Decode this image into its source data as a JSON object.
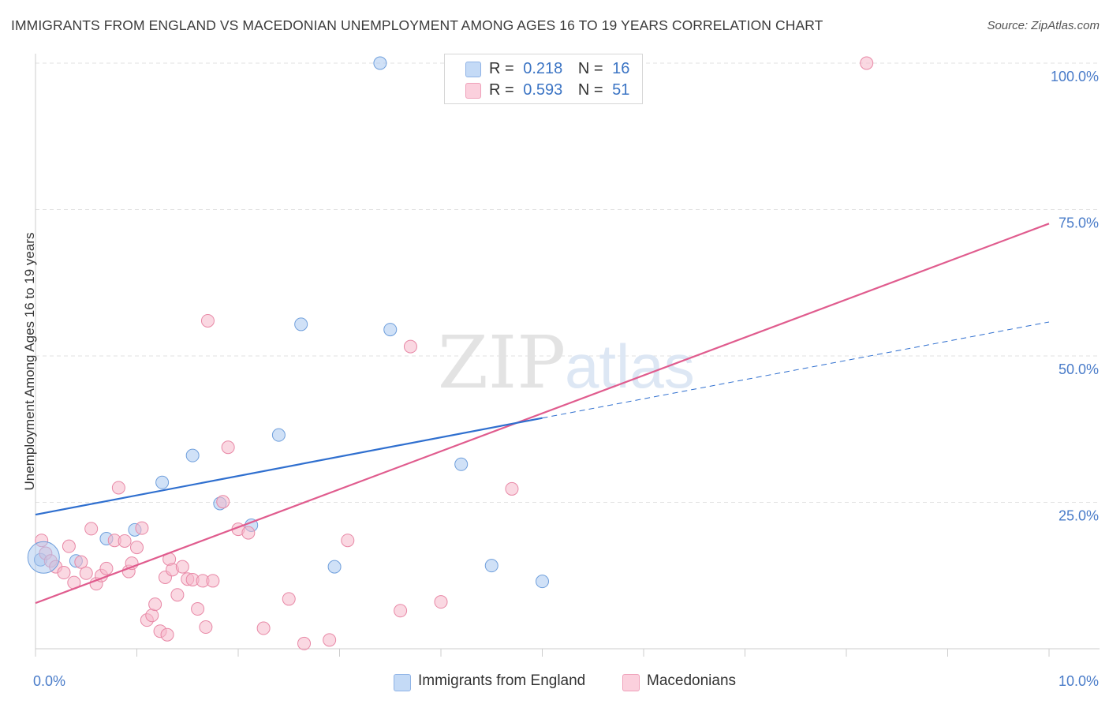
{
  "title": "IMMIGRANTS FROM ENGLAND VS MACEDONIAN UNEMPLOYMENT AMONG AGES 16 TO 19 YEARS CORRELATION CHART",
  "source": "Source: ZipAtlas.com",
  "watermark": {
    "zip": "ZIP",
    "atlas": "atlas"
  },
  "legend_top": [
    {
      "r_label": "R =",
      "r_value": "0.218",
      "n_label": "N =",
      "n_value": "16",
      "color": "#a9c8f0"
    },
    {
      "r_label": "R =",
      "r_value": "0.593",
      "n_label": "N =",
      "n_value": "51",
      "color": "#f6b8cb"
    }
  ],
  "chart_data": {
    "type": "scatter",
    "title": "IMMIGRANTS FROM ENGLAND VS MACEDONIAN UNEMPLOYMENT AMONG AGES 16 TO 19 YEARS CORRELATION CHART",
    "xlabel": "",
    "ylabel": "Unemployment Among Ages 16 to 19 years",
    "xlim": [
      0,
      10
    ],
    "ylim": [
      0,
      100
    ],
    "x_tick_labels": [
      "0.0%",
      "10.0%"
    ],
    "y_tick_labels": [
      "25.0%",
      "50.0%",
      "75.0%",
      "100.0%"
    ],
    "y_tick_values": [
      25,
      50,
      75,
      100
    ],
    "grid": true,
    "legend_position": "top-center",
    "series": [
      {
        "name": "Immigrants from England",
        "color": "#a9c8f0",
        "stroke": "#6f9fdc",
        "line_color": "#2f6fcf",
        "trend": {
          "x0": 0,
          "y0": 22.9,
          "x1": 5.0,
          "y1": 39.4,
          "dash_to_x": 10,
          "dash_to_y": 55.8
        },
        "points": [
          [
            0.05,
            15.2
          ],
          [
            0.4,
            15.0
          ],
          [
            0.7,
            18.8
          ],
          [
            0.98,
            20.3
          ],
          [
            1.25,
            28.4
          ],
          [
            1.55,
            33.0
          ],
          [
            1.82,
            24.8
          ],
          [
            2.13,
            21.1
          ],
          [
            2.4,
            36.5
          ],
          [
            2.62,
            55.4
          ],
          [
            2.95,
            14.0
          ],
          [
            3.4,
            100.0
          ],
          [
            3.5,
            54.5
          ],
          [
            4.2,
            31.5
          ],
          [
            4.5,
            14.2
          ],
          [
            5.0,
            11.5
          ]
        ]
      },
      {
        "name": "Macedonians",
        "color": "#f6b8cb",
        "stroke": "#e888a6",
        "line_color": "#e05c8e",
        "trend": {
          "x0": 0,
          "y0": 7.8,
          "x1": 10,
          "y1": 72.6
        },
        "points": [
          [
            0.06,
            18.5
          ],
          [
            0.1,
            16.3
          ],
          [
            0.15,
            15.0
          ],
          [
            0.2,
            14.0
          ],
          [
            0.28,
            13.0
          ],
          [
            0.33,
            17.5
          ],
          [
            0.38,
            11.3
          ],
          [
            0.45,
            14.8
          ],
          [
            0.5,
            12.9
          ],
          [
            0.55,
            20.5
          ],
          [
            0.6,
            11.1
          ],
          [
            0.65,
            12.5
          ],
          [
            0.7,
            13.7
          ],
          [
            0.78,
            18.5
          ],
          [
            0.82,
            27.5
          ],
          [
            0.88,
            18.4
          ],
          [
            0.92,
            13.2
          ],
          [
            0.95,
            14.6
          ],
          [
            1.0,
            17.3
          ],
          [
            1.05,
            20.6
          ],
          [
            1.1,
            4.9
          ],
          [
            1.15,
            5.7
          ],
          [
            1.18,
            7.6
          ],
          [
            1.23,
            3.0
          ],
          [
            1.28,
            12.2
          ],
          [
            1.3,
            2.4
          ],
          [
            1.32,
            15.3
          ],
          [
            1.35,
            13.5
          ],
          [
            1.4,
            9.2
          ],
          [
            1.45,
            14.0
          ],
          [
            1.5,
            11.9
          ],
          [
            1.55,
            11.8
          ],
          [
            1.6,
            6.8
          ],
          [
            1.65,
            11.6
          ],
          [
            1.68,
            3.7
          ],
          [
            1.7,
            56.0
          ],
          [
            1.75,
            11.6
          ],
          [
            1.85,
            25.1
          ],
          [
            1.9,
            34.4
          ],
          [
            2.0,
            20.4
          ],
          [
            2.1,
            19.8
          ],
          [
            2.25,
            3.5
          ],
          [
            2.5,
            8.5
          ],
          [
            2.65,
            0.9
          ],
          [
            2.9,
            1.5
          ],
          [
            3.08,
            18.5
          ],
          [
            3.6,
            6.5
          ],
          [
            3.7,
            51.6
          ],
          [
            4.0,
            8.0
          ],
          [
            4.7,
            27.3
          ],
          [
            8.2,
            100.0
          ]
        ]
      }
    ]
  }
}
